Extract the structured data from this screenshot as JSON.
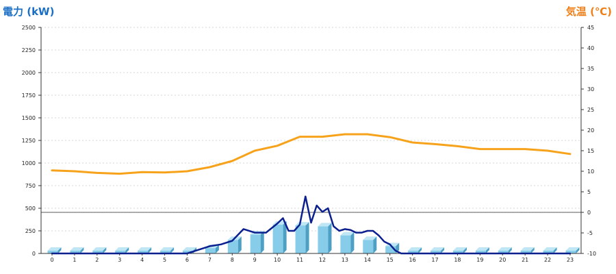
{
  "chart_data": {
    "type": "bar",
    "title": "",
    "ylabel_left": "電力 (kW)",
    "ylabel_right": "気温 (℃)",
    "categories": [
      "0",
      "1",
      "2",
      "3",
      "4",
      "5",
      "6",
      "7",
      "8",
      "9",
      "10",
      "11",
      "12",
      "13",
      "14",
      "15",
      "16",
      "17",
      "18",
      "19",
      "20",
      "21",
      "22",
      "23"
    ],
    "ylim_left": [
      0,
      2500
    ],
    "yticks_left": [
      0,
      250,
      500,
      750,
      1000,
      1250,
      1500,
      1750,
      2000,
      2250,
      2500
    ],
    "ylim_right": [
      -10,
      45
    ],
    "yticks_right": [
      -10,
      -5,
      0,
      5,
      10,
      15,
      20,
      25,
      30,
      35,
      40,
      45
    ],
    "zero_line_temperature": 0,
    "bar_color": "#87cde9",
    "bar_side_color": "#4d9fc4",
    "bar_top_color": "#bfe6f5",
    "temperature_color": "#f7a21b",
    "power_line_color": "#0b1f8f",
    "grid": true,
    "series": [
      {
        "kind": "bar",
        "axis": "left",
        "values": [
          30,
          30,
          30,
          30,
          30,
          30,
          30,
          60,
          150,
          210,
          320,
          310,
          300,
          200,
          150,
          80,
          30,
          30,
          30,
          30,
          30,
          30,
          30,
          30
        ]
      },
      {
        "kind": "line",
        "axis": "left",
        "x": [
          0,
          0.5,
          1,
          1.5,
          2,
          2.5,
          3,
          3.5,
          4,
          4.5,
          5,
          5.5,
          6,
          6.5,
          7,
          7.5,
          8,
          8.5,
          9,
          9.5,
          10,
          10.25,
          10.5,
          10.75,
          11,
          11.25,
          11.5,
          11.75,
          12,
          12.25,
          12.5,
          12.75,
          13,
          13.25,
          13.5,
          13.75,
          14,
          14.25,
          14.5,
          14.75,
          15,
          15.25,
          15.5,
          15.75,
          16,
          16.5,
          17,
          17.5,
          18,
          18.5,
          19,
          19.5,
          20,
          20.5,
          21,
          21.5,
          22,
          22.5,
          23
        ],
        "values": [
          0,
          0,
          0,
          0,
          0,
          0,
          0,
          0,
          0,
          0,
          0,
          0,
          0,
          40,
          80,
          100,
          140,
          270,
          230,
          230,
          330,
          390,
          250,
          250,
          320,
          630,
          340,
          530,
          460,
          500,
          300,
          250,
          270,
          260,
          230,
          230,
          250,
          250,
          200,
          130,
          100,
          30,
          0,
          0,
          0,
          0,
          0,
          0,
          0,
          0,
          0,
          0,
          0,
          0,
          0,
          0,
          0,
          0,
          0
        ]
      },
      {
        "kind": "line",
        "axis": "right",
        "x": [
          0,
          1,
          2,
          3,
          4,
          5,
          6,
          7,
          8,
          9,
          10,
          11,
          12,
          13,
          14,
          15,
          16,
          17,
          18,
          19,
          20,
          21,
          22,
          23
        ],
        "values": [
          10.2,
          10.0,
          9.6,
          9.4,
          9.8,
          9.7,
          10.0,
          11.0,
          12.5,
          15.0,
          16.2,
          18.4,
          18.4,
          19.0,
          19.0,
          18.3,
          17.0,
          16.6,
          16.1,
          15.4,
          15.4,
          15.4,
          15.0,
          14.2
        ]
      }
    ]
  }
}
